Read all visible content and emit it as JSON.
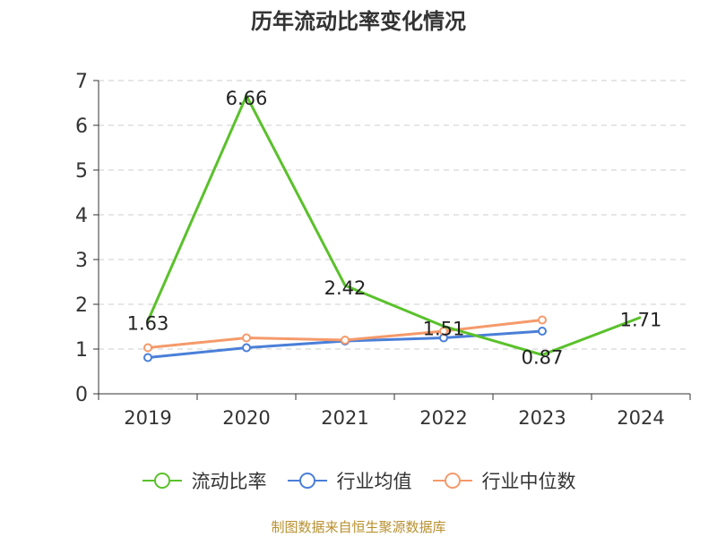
{
  "chart_data": {
    "type": "line",
    "title": "历年流动比率变化情况",
    "categories": [
      "2019",
      "2020",
      "2021",
      "2022",
      "2023",
      "2024"
    ],
    "y_ticks": [
      "0",
      "1",
      "2",
      "3",
      "4",
      "5",
      "6",
      "7"
    ],
    "ylim": [
      0,
      7
    ],
    "grid": true,
    "legend_position": "bottom",
    "series": [
      {
        "name": "流动比率",
        "color": "#5ac12b",
        "values": [
          1.63,
          6.66,
          2.42,
          1.51,
          0.87,
          1.71
        ],
        "labels": [
          "1.63",
          "6.66",
          "2.42",
          "1.51",
          "0.87",
          "1.71"
        ]
      },
      {
        "name": "行业均值",
        "color": "#4a7fd8",
        "values": [
          0.81,
          1.03,
          1.18,
          1.25,
          1.4,
          null
        ]
      },
      {
        "name": "行业中位数",
        "color": "#f59a6b",
        "values": [
          1.03,
          1.25,
          1.2,
          1.4,
          1.65,
          null
        ]
      }
    ]
  },
  "source": {
    "text": "制图数据来自恒生聚源数据库",
    "color": "#b8902f"
  }
}
